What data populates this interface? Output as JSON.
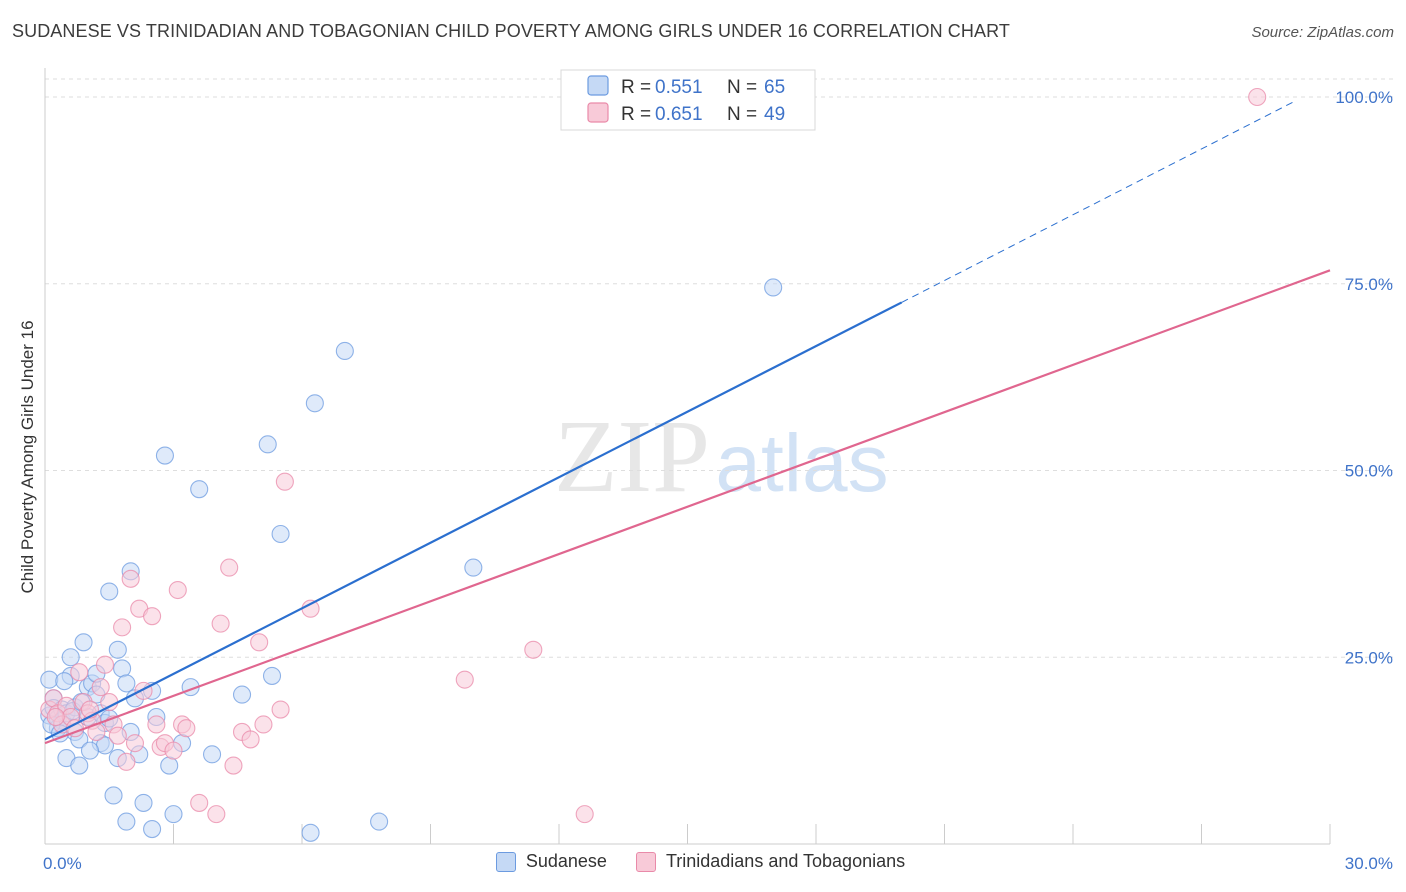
{
  "chart_data": {
    "type": "scatter",
    "title": "SUDANESE VS TRINIDADIAN AND TOBAGONIAN CHILD POVERTY AMONG GIRLS UNDER 16 CORRELATION CHART",
    "source": "Source: ZipAtlas.com",
    "xlabel": "",
    "ylabel": "Child Poverty Among Girls Under 16",
    "xlim": [
      0,
      30
    ],
    "ylim": [
      0,
      104
    ],
    "x_tick_labels": [
      "0.0%",
      "30.0%"
    ],
    "y_ticks": [
      25,
      50,
      75,
      100
    ],
    "y_tick_labels": [
      "25.0%",
      "50.0%",
      "75.0%",
      "100.0%"
    ],
    "watermark": "ZIPatlas",
    "legend": {
      "r_label": "R =",
      "n_label": "N =",
      "entries": [
        {
          "name": "Sudanese",
          "r": "0.551",
          "n": "65"
        },
        {
          "name": "Trinidadians and Tobagonians",
          "r": "0.651",
          "n": "49"
        }
      ]
    },
    "series": [
      {
        "name": "Sudanese",
        "color": "#6c9be0",
        "fill": "#c5d9f5",
        "trend": {
          "x0": 0,
          "y0": 14.0,
          "x1": 20.0,
          "y1": 72.5,
          "dash_to_x": 29.2,
          "dash_to_y": 99.5,
          "color": "#2b6fcf"
        },
        "points": [
          [
            0.1,
            22.0
          ],
          [
            0.1,
            17.2
          ],
          [
            0.2,
            19.5
          ],
          [
            0.2,
            18.2
          ],
          [
            0.3,
            16.8
          ],
          [
            0.3,
            15.5
          ],
          [
            0.4,
            18.0
          ],
          [
            0.4,
            16.5
          ],
          [
            0.5,
            17.5
          ],
          [
            0.5,
            11.5
          ],
          [
            0.6,
            22.5
          ],
          [
            0.6,
            25.0
          ],
          [
            0.7,
            18.3
          ],
          [
            0.7,
            15.0
          ],
          [
            0.8,
            14.0
          ],
          [
            0.8,
            10.5
          ],
          [
            0.9,
            27.0
          ],
          [
            1.0,
            21.0
          ],
          [
            1.0,
            17.0
          ],
          [
            1.1,
            21.5
          ],
          [
            1.2,
            20.0
          ],
          [
            1.2,
            22.8
          ],
          [
            1.3,
            13.5
          ],
          [
            1.3,
            17.5
          ],
          [
            1.4,
            13.2
          ],
          [
            1.4,
            16.2
          ],
          [
            1.5,
            16.8
          ],
          [
            1.5,
            33.8
          ],
          [
            1.6,
            6.5
          ],
          [
            1.7,
            11.5
          ],
          [
            1.7,
            26.0
          ],
          [
            1.8,
            23.5
          ],
          [
            1.9,
            21.5
          ],
          [
            1.9,
            3.0
          ],
          [
            2.0,
            15.0
          ],
          [
            2.0,
            36.5
          ],
          [
            2.1,
            19.5
          ],
          [
            2.2,
            12.0
          ],
          [
            2.3,
            5.5
          ],
          [
            2.5,
            2.0
          ],
          [
            2.5,
            20.5
          ],
          [
            2.6,
            17.0
          ],
          [
            2.8,
            52.0
          ],
          [
            2.9,
            10.5
          ],
          [
            3.0,
            4.0
          ],
          [
            3.2,
            13.5
          ],
          [
            3.4,
            21.0
          ],
          [
            3.6,
            47.5
          ],
          [
            3.9,
            12.0
          ],
          [
            4.6,
            20.0
          ],
          [
            5.2,
            53.5
          ],
          [
            5.3,
            22.5
          ],
          [
            5.5,
            41.5
          ],
          [
            6.2,
            1.5
          ],
          [
            6.3,
            59.0
          ],
          [
            7.0,
            66.0
          ],
          [
            7.8,
            3.0
          ],
          [
            10.0,
            37.0
          ],
          [
            17.0,
            74.5
          ],
          [
            0.15,
            16.0
          ],
          [
            0.35,
            14.8
          ],
          [
            0.45,
            21.8
          ],
          [
            0.65,
            17.8
          ],
          [
            0.85,
            19.0
          ],
          [
            1.05,
            12.5
          ]
        ]
      },
      {
        "name": "Trinidadians and Tobagonians",
        "color": "#e98aa9",
        "fill": "#f8cad8",
        "trend": {
          "x0": 0,
          "y0": 13.5,
          "x1": 30.0,
          "y1": 76.8,
          "color": "#e0668f"
        },
        "points": [
          [
            0.1,
            18.0
          ],
          [
            0.2,
            19.5
          ],
          [
            0.3,
            17.5
          ],
          [
            0.4,
            16.0
          ],
          [
            0.5,
            18.5
          ],
          [
            0.6,
            17.0
          ],
          [
            0.7,
            15.5
          ],
          [
            0.8,
            23.0
          ],
          [
            0.9,
            19.0
          ],
          [
            1.0,
            17.5
          ],
          [
            1.1,
            16.5
          ],
          [
            1.2,
            15.0
          ],
          [
            1.3,
            21.0
          ],
          [
            1.4,
            24.0
          ],
          [
            1.5,
            19.0
          ],
          [
            1.6,
            16.0
          ],
          [
            1.7,
            14.5
          ],
          [
            1.8,
            29.0
          ],
          [
            1.9,
            11.0
          ],
          [
            2.0,
            35.5
          ],
          [
            2.1,
            13.5
          ],
          [
            2.2,
            31.5
          ],
          [
            2.3,
            20.5
          ],
          [
            2.5,
            30.5
          ],
          [
            2.6,
            16.0
          ],
          [
            2.7,
            13.0
          ],
          [
            2.8,
            13.5
          ],
          [
            3.0,
            12.5
          ],
          [
            3.1,
            34.0
          ],
          [
            3.2,
            16.0
          ],
          [
            3.3,
            15.5
          ],
          [
            3.6,
            5.5
          ],
          [
            4.0,
            4.0
          ],
          [
            4.1,
            29.5
          ],
          [
            4.3,
            37.0
          ],
          [
            4.4,
            10.5
          ],
          [
            4.6,
            15.0
          ],
          [
            4.8,
            14.0
          ],
          [
            5.0,
            27.0
          ],
          [
            5.1,
            16.0
          ],
          [
            5.5,
            18.0
          ],
          [
            5.6,
            48.5
          ],
          [
            6.2,
            31.5
          ],
          [
            9.8,
            22.0
          ],
          [
            11.4,
            26.0
          ],
          [
            12.6,
            4.0
          ],
          [
            28.3,
            100.0
          ],
          [
            0.25,
            17.0
          ],
          [
            1.05,
            18.0
          ]
        ]
      }
    ]
  }
}
